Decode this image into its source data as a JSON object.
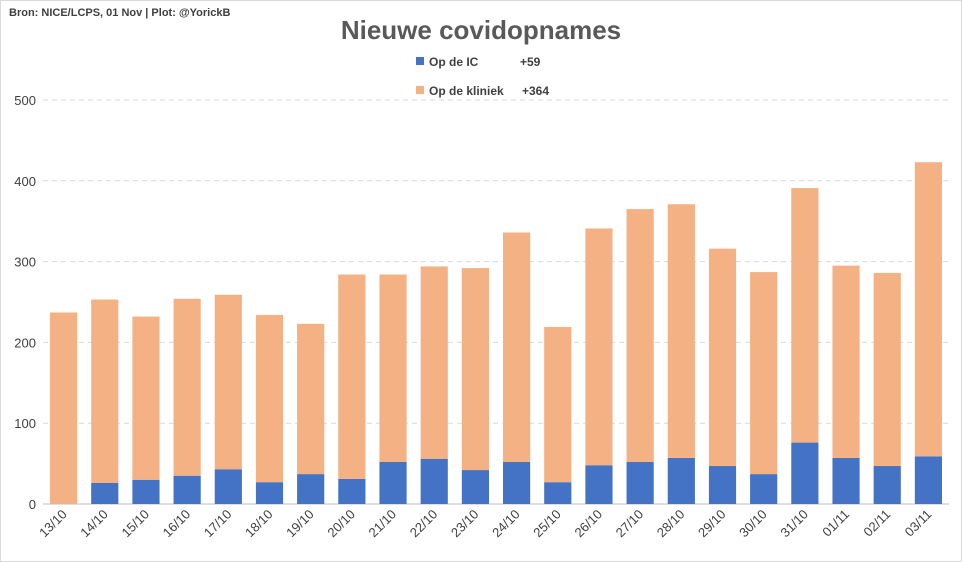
{
  "header": {
    "source": "Bron: NICE/LCPS, 01 Nov  |  Plot: @YorickB",
    "title": "Nieuwe covidopnames"
  },
  "legend": [
    {
      "label": "Op de IC",
      "delta": "+59",
      "color": "#4472c4"
    },
    {
      "label": "Op de kliniek",
      "delta": "+364",
      "color": "#f4b183"
    }
  ],
  "chart_data": {
    "type": "bar",
    "stacked": true,
    "title": "Nieuwe covidopnames",
    "xlabel": "",
    "ylabel": "",
    "ylim": [
      0,
      500
    ],
    "yticks": [
      0,
      100,
      200,
      300,
      400,
      500
    ],
    "grid": true,
    "legend_position": "top",
    "categories": [
      "13/10",
      "14/10",
      "15/10",
      "16/10",
      "17/10",
      "18/10",
      "19/10",
      "20/10",
      "21/10",
      "22/10",
      "23/10",
      "24/10",
      "25/10",
      "26/10",
      "27/10",
      "28/10",
      "29/10",
      "30/10",
      "31/10",
      "01/11",
      "02/11",
      "03/11"
    ],
    "series": [
      {
        "name": "Op de IC",
        "color": "#4472c4",
        "values": [
          0,
          26,
          30,
          35,
          43,
          27,
          37,
          31,
          52,
          56,
          42,
          52,
          27,
          48,
          52,
          57,
          47,
          37,
          76,
          57,
          47,
          59
        ]
      },
      {
        "name": "Op de kliniek",
        "color": "#f4b183",
        "values": [
          237,
          227,
          202,
          219,
          216,
          207,
          186,
          253,
          232,
          238,
          250,
          284,
          192,
          293,
          313,
          314,
          269,
          250,
          315,
          238,
          239,
          364
        ]
      }
    ]
  }
}
